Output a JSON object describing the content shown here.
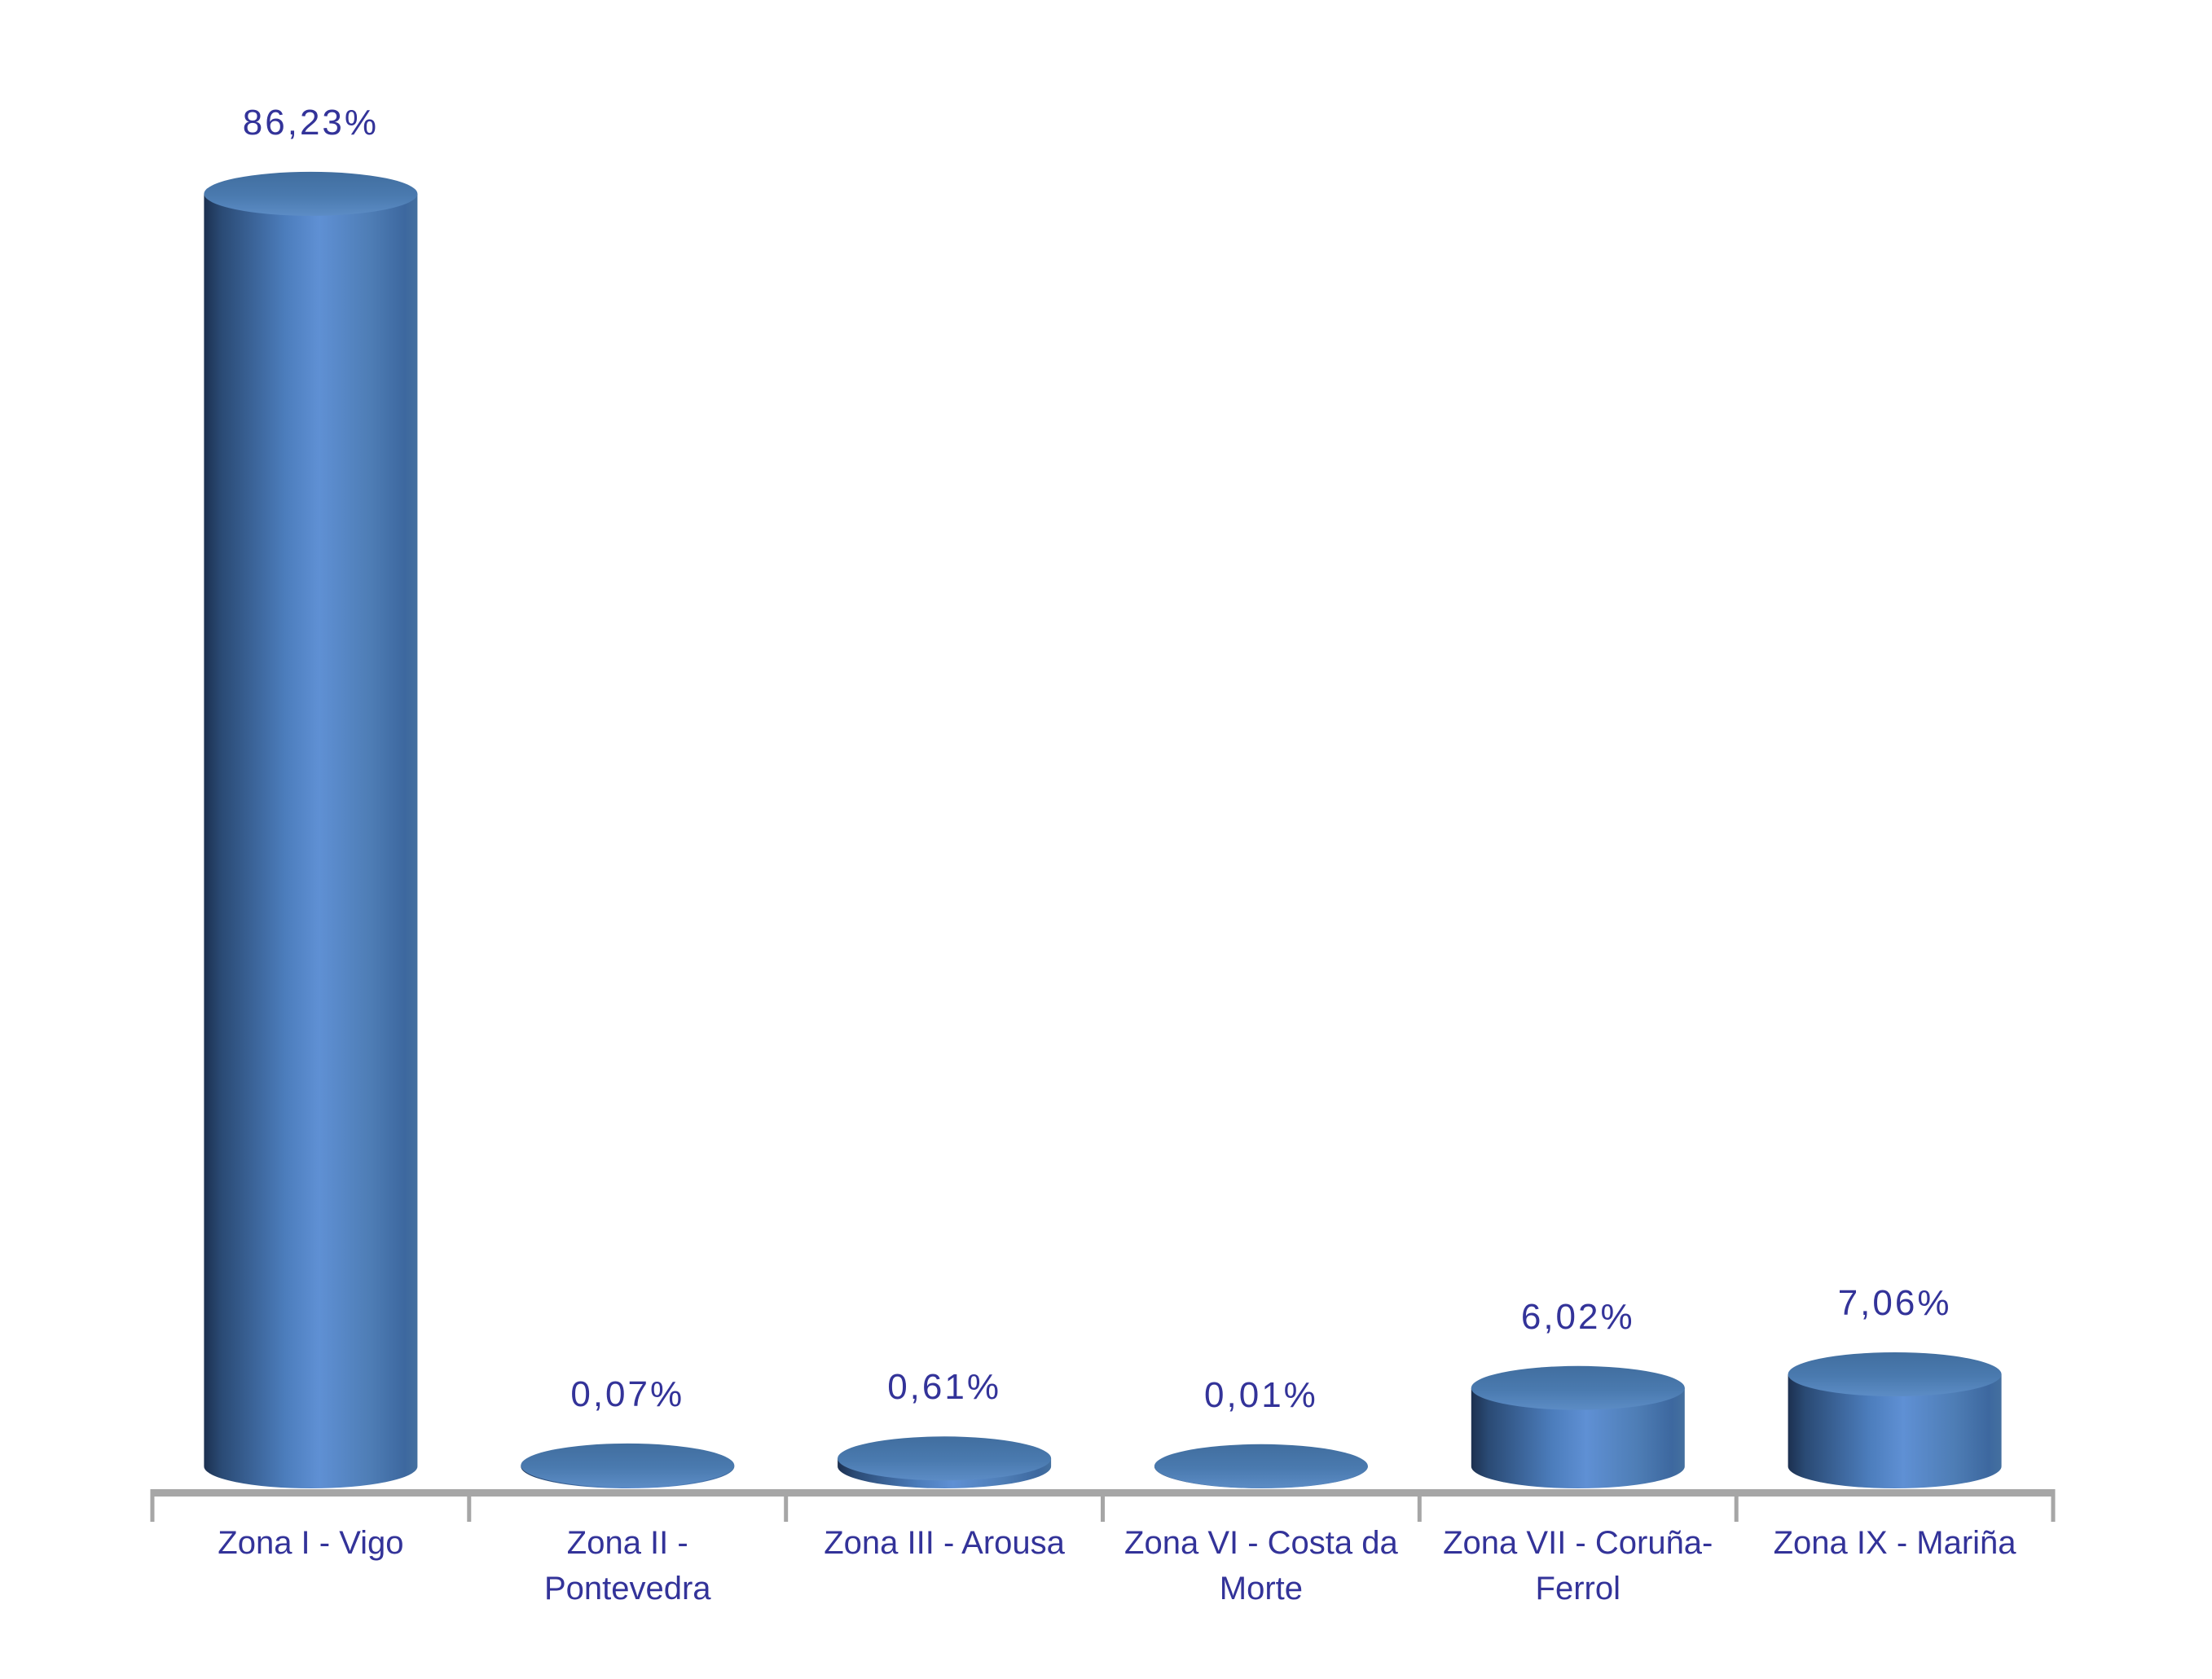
{
  "page": {
    "background": "#FFFFFF"
  },
  "chart_data": {
    "type": "bar",
    "bar_shape": "3d-cylinder",
    "orientation": "vertical",
    "title": "",
    "xlabel": "",
    "ylabel": "",
    "grid": false,
    "legend": false,
    "value_format": "percent with comma decimal separator",
    "categories": [
      "Zona I - Vigo",
      "Zona II - Pontevedra",
      "Zona III - Arousa",
      "Zona VI - Costa da Morte",
      "Zona VII - Coruña-Ferrol",
      "Zona IX - Mariña"
    ],
    "category_label_lines": [
      [
        "Zona I - Vigo"
      ],
      [
        "Zona II -",
        "Pontevedra"
      ],
      [
        "Zona III - Arousa"
      ],
      [
        "Zona VI - Costa da",
        "Morte"
      ],
      [
        "Zona VII - Coruña-",
        "Ferrol"
      ],
      [
        "Zona IX - Mariña"
      ]
    ],
    "values": [
      86.23,
      0.07,
      0.61,
      0.01,
      6.02,
      7.06
    ],
    "value_labels": [
      "86,23%",
      "0,07%",
      "0,61%",
      "0,01%",
      "6,02%",
      "7,06%"
    ],
    "colors": {
      "bar_side_gradient": [
        "#1C3050",
        "#2A4A74",
        "#4C7DBC",
        "#5F90D4",
        "#4E7DB5",
        "#3D689F",
        "#44709F"
      ],
      "bar_top_gradient": [
        "#416E9F",
        "#4A7AAF",
        "#5C8CC5"
      ],
      "data_label": "#333399",
      "category_label": "#333399",
      "axis_line": "#A6A6A6",
      "background": "#FFFFFF"
    }
  }
}
